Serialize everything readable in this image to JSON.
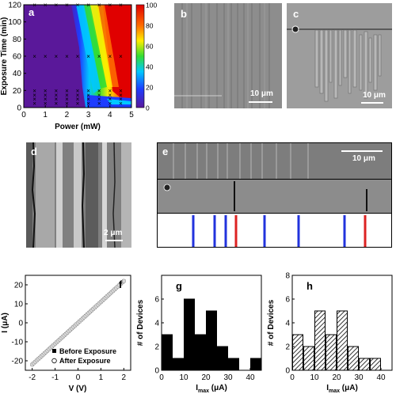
{
  "panels": {
    "a": {
      "letter": "a",
      "xlabel": "Power (mW)",
      "ylabel": "Exposure Time (min)",
      "xticks": [
        "0",
        "1",
        "2",
        "3",
        "4",
        "5"
      ],
      "yticks": [
        "0",
        "20",
        "40",
        "60",
        "80",
        "100",
        "120"
      ],
      "colorbar_ticks": [
        "100",
        "80",
        "60",
        "40",
        "20",
        "0"
      ]
    },
    "b": {
      "letter": "b",
      "scale": "10 μm"
    },
    "c": {
      "letter": "c",
      "scale": "10 μm"
    },
    "d": {
      "letter": "d",
      "scale": "2 μm"
    },
    "e": {
      "letter": "e",
      "scale": "10 μm"
    },
    "f": {
      "letter": "f",
      "xlabel": "V (V)",
      "ylabel": "I (μA)",
      "xticks": [
        "-2",
        "-1",
        "0",
        "1",
        "2"
      ],
      "yticks": [
        "-20",
        "-10",
        "0",
        "10",
        "20"
      ],
      "legend": [
        "Before Exposure",
        "After Exposure"
      ]
    },
    "g": {
      "letter": "g",
      "xlabel_main": "I",
      "xlabel_sub": "max",
      "xlabel_unit": " (μA)",
      "ylabel": "# of Devices",
      "xticks": [
        "0",
        "10",
        "20",
        "30",
        "40"
      ],
      "yticks": [
        "0",
        "2",
        "4",
        "6"
      ]
    },
    "h": {
      "letter": "h",
      "xlabel_main": "I",
      "xlabel_sub": "max",
      "xlabel_unit": " (μA)",
      "ylabel": "# of Devices",
      "xticks": [
        "0",
        "10",
        "20",
        "30",
        "40"
      ],
      "yticks": [
        "0",
        "2",
        "4",
        "6",
        "8"
      ]
    }
  },
  "chart_data": [
    {
      "type": "heatmap",
      "panel": "a",
      "xlabel": "Power (mW)",
      "ylabel": "Exposure Time (min)",
      "xlim": [
        0,
        5
      ],
      "ylim": [
        0,
        120
      ],
      "colorbar_range": [
        0,
        100
      ],
      "markers_x": [
        0.5,
        1,
        1.5,
        2,
        2.5,
        3,
        3.5,
        4,
        4.5
      ],
      "marker_rows_y": [
        120,
        60,
        20,
        15,
        10,
        5
      ]
    },
    {
      "type": "line",
      "panel": "f",
      "xlabel": "V (V)",
      "ylabel": "I (μA)",
      "xlim": [
        -2.3,
        2.3
      ],
      "ylim": [
        -25,
        25
      ],
      "series": [
        {
          "name": "Before Exposure",
          "x": [
            -2,
            -1,
            0,
            1,
            2
          ],
          "y": [
            -22,
            -11,
            0,
            11,
            22
          ]
        },
        {
          "name": "After Exposure",
          "x": [
            -2,
            -1,
            0,
            1,
            2
          ],
          "y": [
            -22,
            -11,
            0,
            11,
            22
          ]
        }
      ]
    },
    {
      "type": "bar",
      "panel": "g",
      "ylabel": "# of Devices",
      "xlim": [
        0,
        45
      ],
      "ylim": [
        0,
        8
      ],
      "categories": [
        2.5,
        7.5,
        12.5,
        17.5,
        22.5,
        27.5,
        32.5,
        37.5,
        42.5
      ],
      "values": [
        3,
        1,
        6,
        3,
        5,
        2,
        1,
        0,
        1
      ]
    },
    {
      "type": "bar",
      "panel": "h",
      "ylabel": "# of Devices",
      "xlim": [
        0,
        45
      ],
      "ylim": [
        0,
        8
      ],
      "categories": [
        2.5,
        7.5,
        12.5,
        17.5,
        22.5,
        27.5,
        32.5,
        37.5,
        42.5
      ],
      "values": [
        3,
        2,
        5,
        3,
        5,
        2,
        1,
        1,
        0
      ]
    }
  ]
}
